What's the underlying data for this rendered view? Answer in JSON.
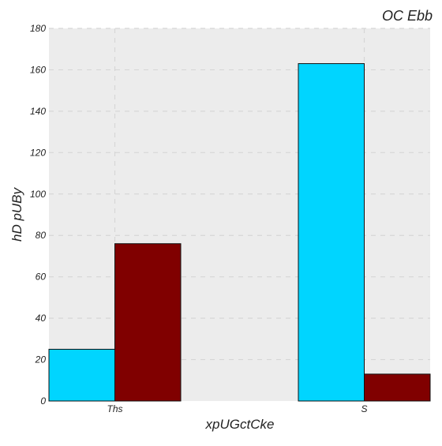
{
  "chart_data": {
    "type": "bar",
    "title": "OC Ebb",
    "xlabel": "xpUGctCke",
    "ylabel": "hD  pUBy",
    "categories": [
      "Ths",
      "S"
    ],
    "series": [
      {
        "values": [
          25,
          163
        ],
        "color": "#00d5ff"
      },
      {
        "values": [
          76,
          13
        ],
        "color": "#800000"
      }
    ],
    "ylim": [
      0,
      180
    ],
    "yticks": [
      0,
      20,
      40,
      60,
      80,
      100,
      120,
      140,
      160,
      180
    ],
    "grid": true,
    "grid_style": "dashed",
    "plot_background": "#ececec",
    "legend": "none"
  }
}
